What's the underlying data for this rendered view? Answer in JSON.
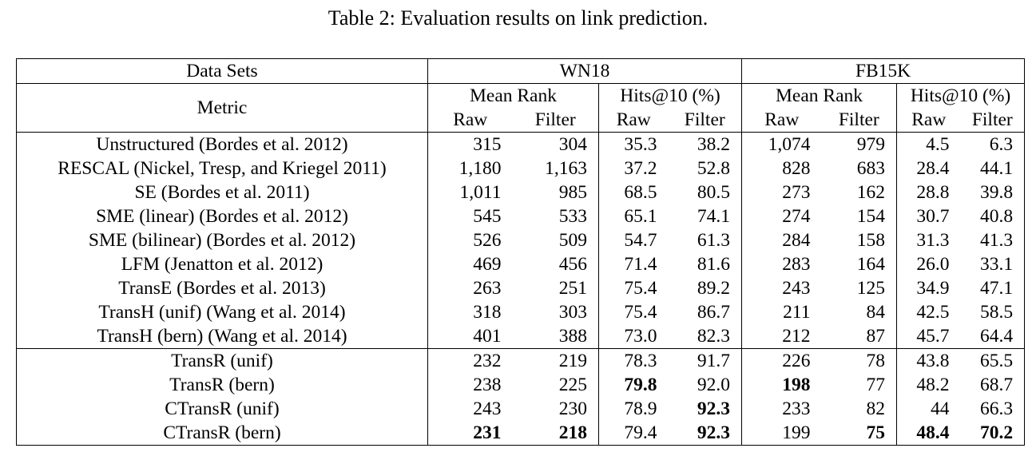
{
  "caption": "Table 2: Evaluation results on link prediction.",
  "header": {
    "datasets_label": "Data Sets",
    "metric_label": "Metric",
    "wn18": "WN18",
    "fb15k": "FB15K",
    "mean_rank": "Mean Rank",
    "hits10": "Hits@10 (%)",
    "raw": "Raw",
    "filter": "Filter"
  },
  "group1": [
    {
      "method": "Unstructured (Bordes et al. 2012)",
      "vals": [
        "315",
        "304",
        "35.3",
        "38.2",
        "1,074",
        "979",
        "4.5",
        "6.3"
      ]
    },
    {
      "method": "RESCAL (Nickel, Tresp, and Kriegel 2011)",
      "vals": [
        "1,180",
        "1,163",
        "37.2",
        "52.8",
        "828",
        "683",
        "28.4",
        "44.1"
      ]
    },
    {
      "method": "SE (Bordes et al. 2011)",
      "vals": [
        "1,011",
        "985",
        "68.5",
        "80.5",
        "273",
        "162",
        "28.8",
        "39.8"
      ]
    },
    {
      "method": "SME (linear) (Bordes et al. 2012)",
      "vals": [
        "545",
        "533",
        "65.1",
        "74.1",
        "274",
        "154",
        "30.7",
        "40.8"
      ]
    },
    {
      "method": "SME (bilinear) (Bordes et al. 2012)",
      "vals": [
        "526",
        "509",
        "54.7",
        "61.3",
        "284",
        "158",
        "31.3",
        "41.3"
      ]
    },
    {
      "method": "LFM (Jenatton et al. 2012)",
      "vals": [
        "469",
        "456",
        "71.4",
        "81.6",
        "283",
        "164",
        "26.0",
        "33.1"
      ]
    },
    {
      "method": "TransE (Bordes et al. 2013)",
      "vals": [
        "263",
        "251",
        "75.4",
        "89.2",
        "243",
        "125",
        "34.9",
        "47.1"
      ]
    },
    {
      "method": "TransH (unif) (Wang et al. 2014)",
      "vals": [
        "318",
        "303",
        "75.4",
        "86.7",
        "211",
        "84",
        "42.5",
        "58.5"
      ]
    },
    {
      "method": "TransH (bern) (Wang et al. 2014)",
      "vals": [
        "401",
        "388",
        "73.0",
        "82.3",
        "212",
        "87",
        "45.7",
        "64.4"
      ]
    }
  ],
  "group2": [
    {
      "method": "TransR (unif)",
      "vals": [
        "232",
        "219",
        "78.3",
        "91.7",
        "226",
        "78",
        "43.8",
        "65.5"
      ],
      "bold": []
    },
    {
      "method": "TransR (bern)",
      "vals": [
        "238",
        "225",
        "79.8",
        "92.0",
        "198",
        "77",
        "48.2",
        "68.7"
      ],
      "bold": [
        2,
        4
      ]
    },
    {
      "method": "CTransR (unif)",
      "vals": [
        "243",
        "230",
        "78.9",
        "92.3",
        "233",
        "82",
        "44",
        "66.3"
      ],
      "bold": [
        3
      ]
    },
    {
      "method": "CTransR (bern)",
      "vals": [
        "231",
        "218",
        "79.4",
        "92.3",
        "199",
        "75",
        "48.4",
        "70.2"
      ],
      "bold": [
        0,
        1,
        3,
        5,
        6,
        7
      ]
    }
  ]
}
